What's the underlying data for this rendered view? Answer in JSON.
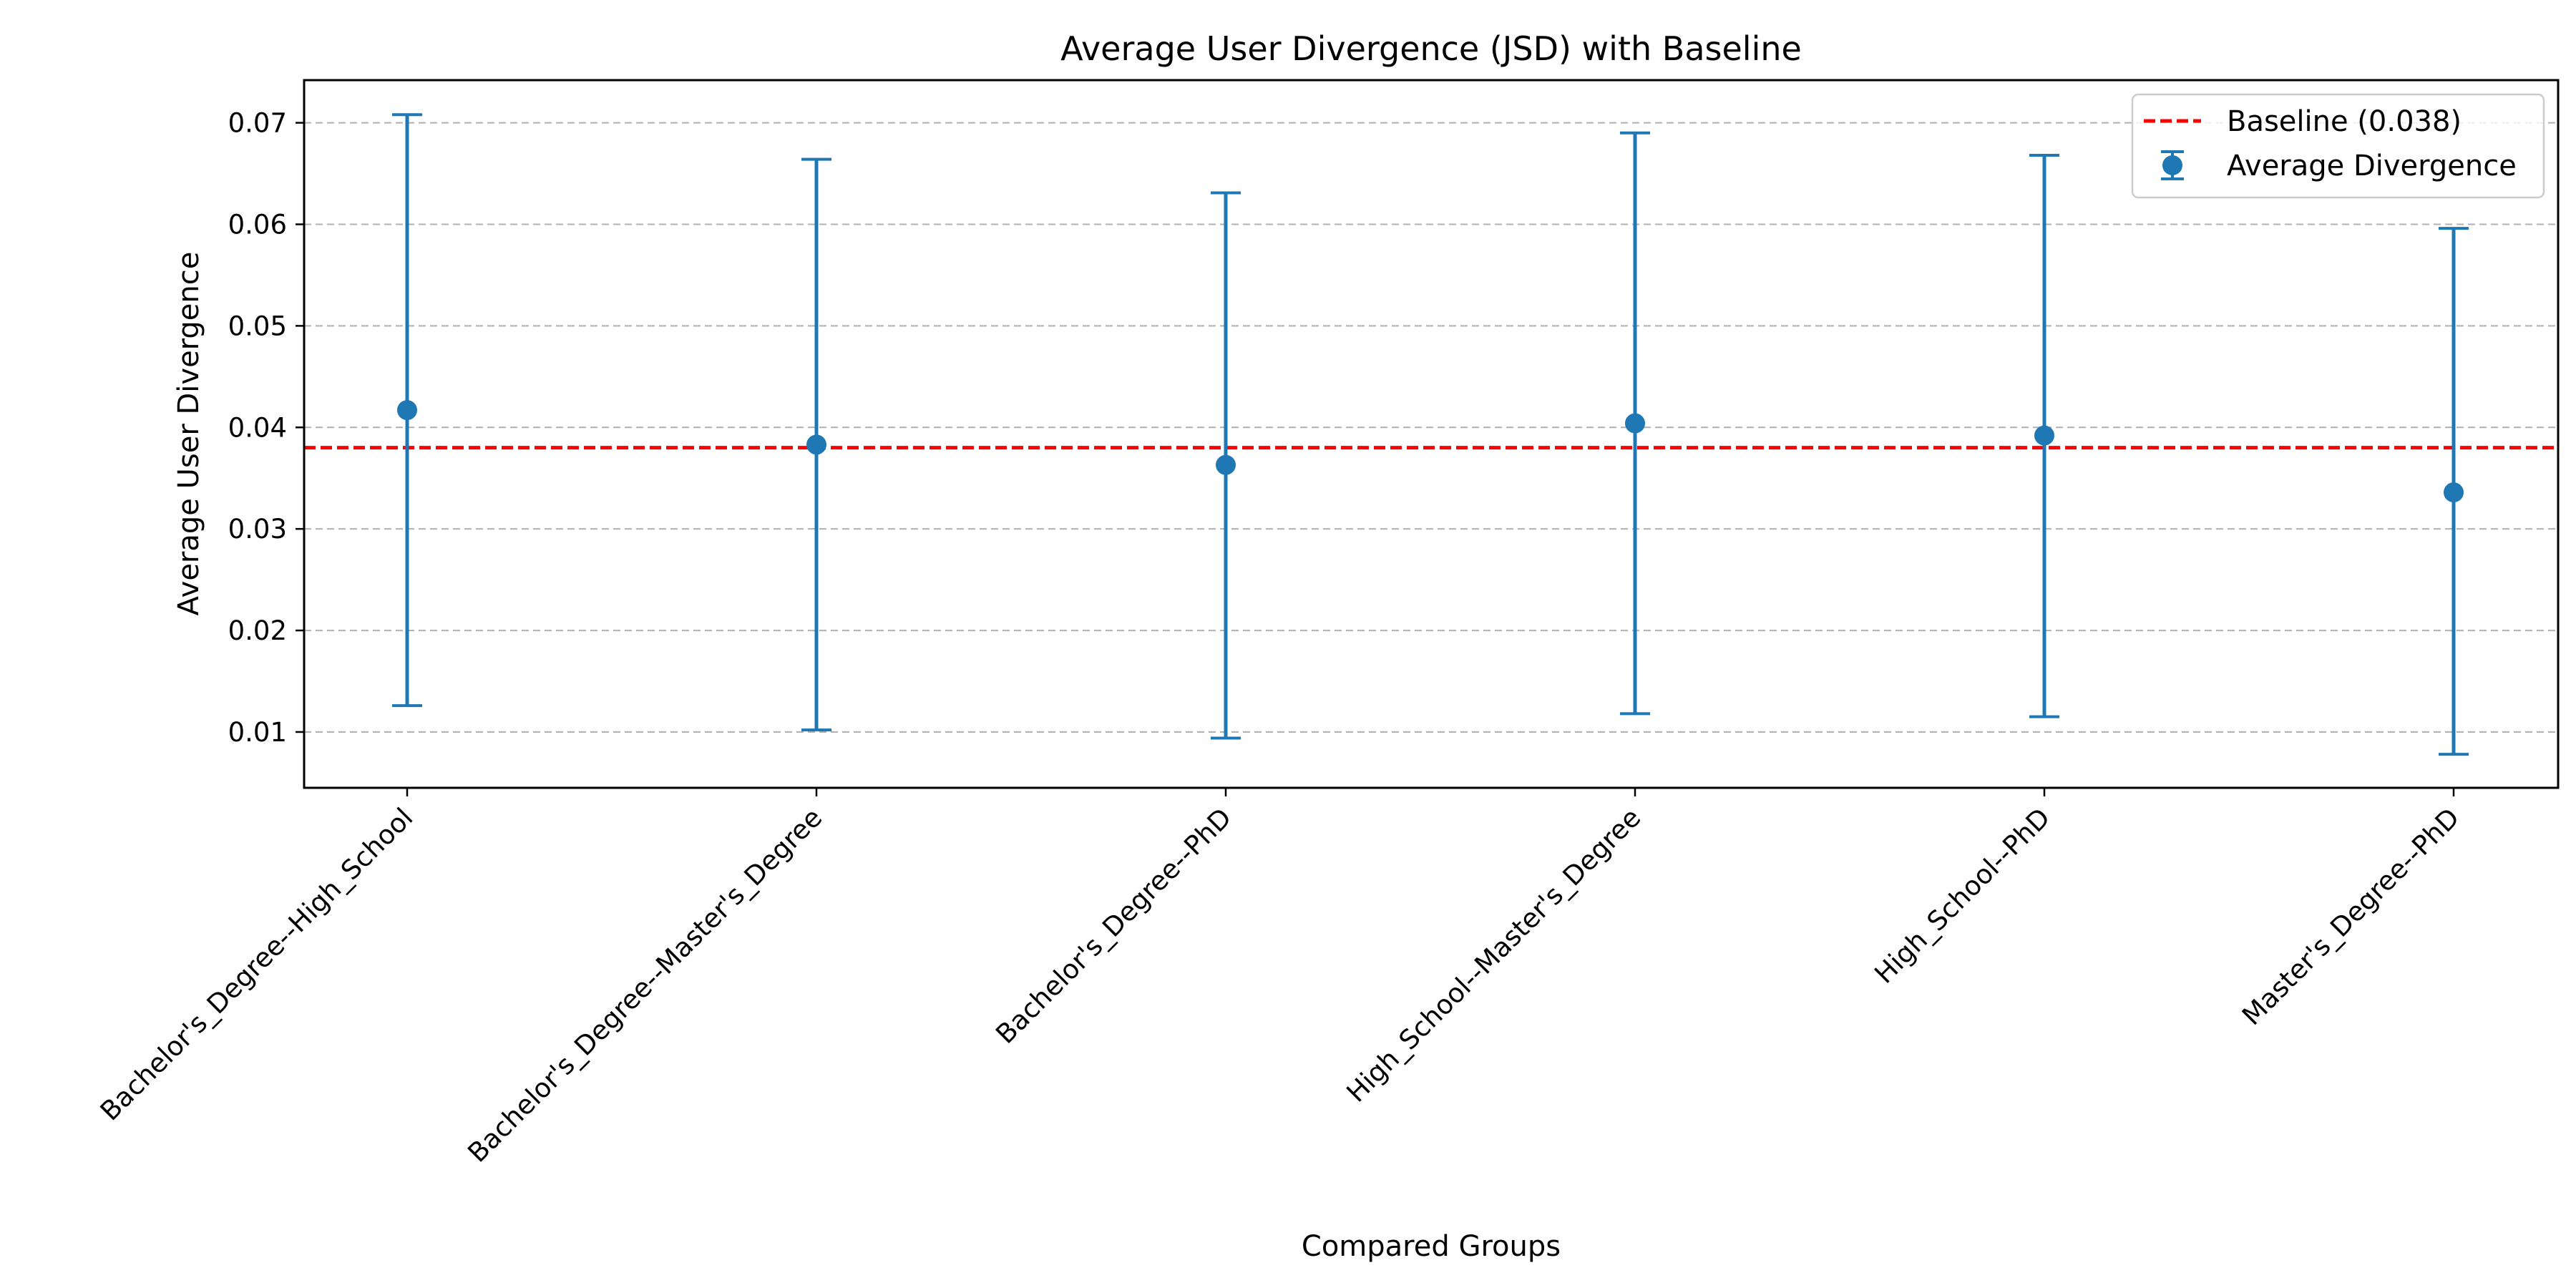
{
  "chart_data": {
    "type": "scatter",
    "title": "Average User Divergence (JSD) with Baseline",
    "xlabel": "Compared Groups",
    "ylabel": "Average User Divergence",
    "categories": [
      "Bachelor's_Degree--High_School",
      "Bachelor's_Degree--Master's_Degree",
      "Bachelor's_Degree--PhD",
      "High_School--Master's_Degree",
      "High_School--PhD",
      "Master's_Degree--PhD"
    ],
    "series": [
      {
        "name": "Average Divergence",
        "values": [
          0.0417,
          0.0383,
          0.0363,
          0.0404,
          0.0392,
          0.0336
        ],
        "error_lower": [
          0.0126,
          0.0102,
          0.0094,
          0.0118,
          0.0115,
          0.0078
        ],
        "error_upper": [
          0.0708,
          0.0664,
          0.0631,
          0.069,
          0.0668,
          0.0596
        ],
        "color": "#1f77b4"
      }
    ],
    "baseline": {
      "name": "Baseline (0.038)",
      "value": 0.038,
      "color": "#ff0000",
      "style": "dashed"
    },
    "yticks": [
      0.01,
      0.02,
      0.03,
      0.04,
      0.05,
      0.06,
      0.07
    ],
    "ytick_labels": [
      "0.01",
      "0.02",
      "0.03",
      "0.04",
      "0.05",
      "0.06",
      "0.07"
    ],
    "ylim": [
      0.0045,
      0.0742
    ],
    "grid": "y-dashed",
    "legend_position": "top-right"
  }
}
